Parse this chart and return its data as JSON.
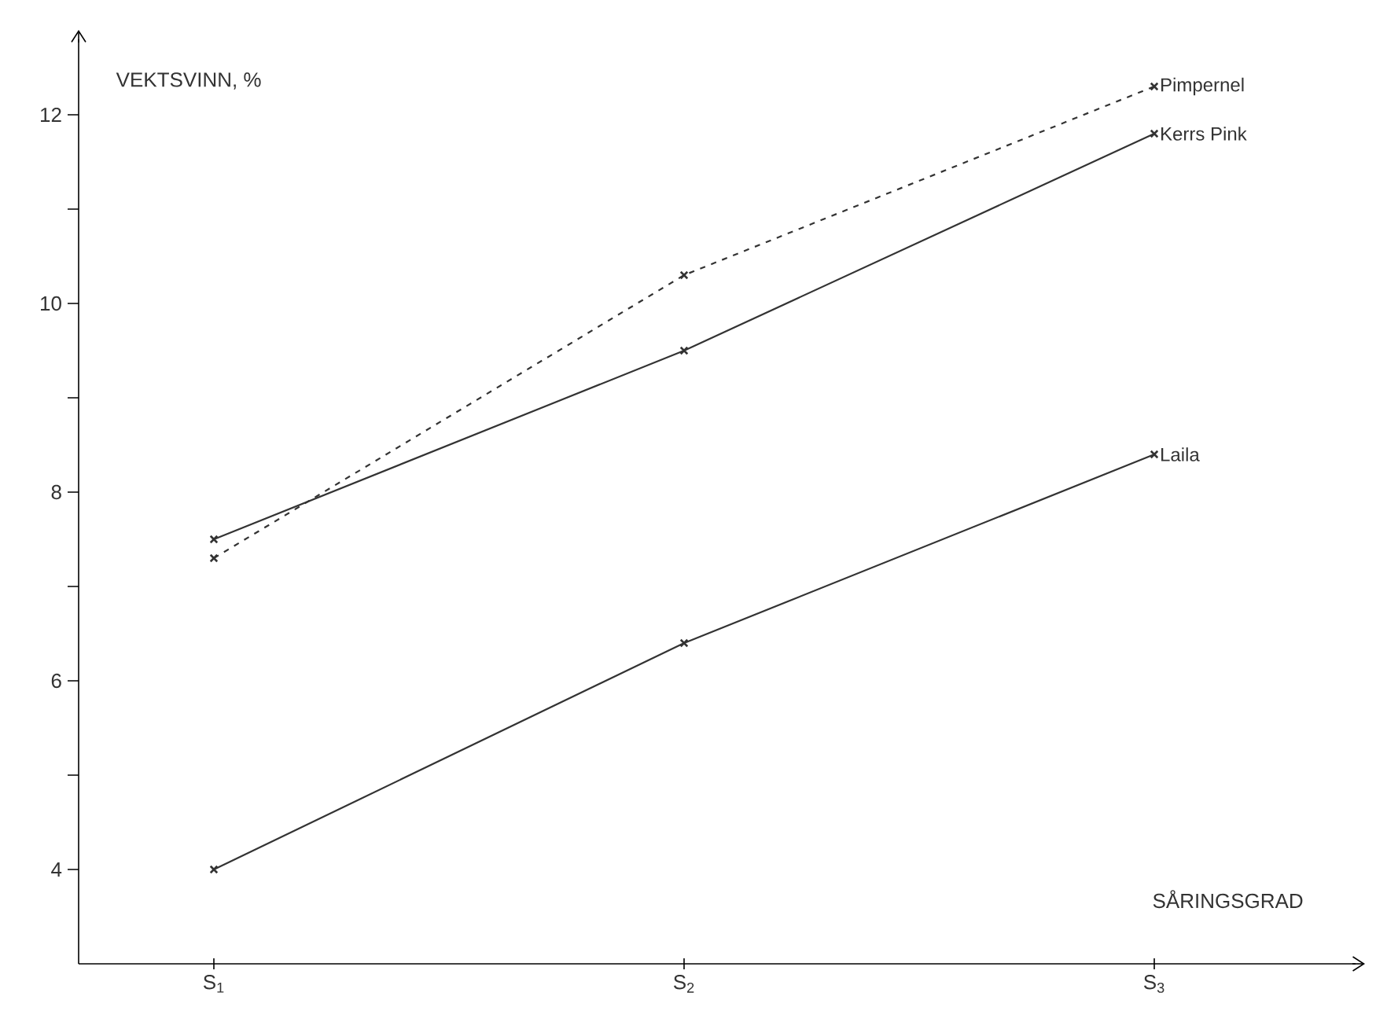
{
  "chart_data": {
    "type": "line",
    "ylabel": "VEKTSVINN, %",
    "xlabel": "SÅRINGSGRAD",
    "categories": [
      "S$_{1}$",
      "S$_{2}$",
      "S$_{3}$"
    ],
    "ylim": [
      3,
      12.8
    ],
    "yticks": [
      4,
      {
        "value": 5,
        "label": null
      },
      6,
      {
        "value": 7,
        "label": null
      },
      8,
      {
        "value": 9,
        "label": null
      },
      10,
      {
        "value": 11,
        "label": null
      },
      12
    ],
    "marker": "cross",
    "grid": false,
    "legend": false,
    "series": [
      {
        "name": "Pimpernel",
        "color": "#333333",
        "line_style": "dashed",
        "values": [
          7.3,
          10.3,
          12.3
        ]
      },
      {
        "name": "Kerrs Pink",
        "color": "#333333",
        "line_style": "solid",
        "values": [
          7.5,
          9.5,
          11.8
        ]
      },
      {
        "name": "Laila",
        "color": "#333333",
        "line_style": "solid",
        "values": [
          4.0,
          6.4,
          8.4
        ]
      }
    ]
  }
}
